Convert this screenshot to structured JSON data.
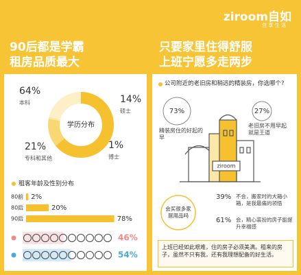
{
  "header": {
    "logo": "ziroom自如",
    "slogan": "住 享 生 活"
  },
  "left": {
    "title": [
      "90后都是学霸",
      "租房品质最大"
    ]
  },
  "right": {
    "title": [
      "只要家里住得舒服",
      "上班宁愿多走两步"
    ],
    "survey": [
      {
        "question": "公司附近的老旧房和稍远的精装房，你选哪个?",
        "options": [
          {
            "value": "73%",
            "text": "精装房住的好起的早"
          },
          {
            "value": "27%",
            "text": "老旧房不用早起就是王道"
          }
        ]
      },
      {
        "question": "会买很多家居用品吗",
        "options": [
          {
            "value": "39%",
            "text": "不会，搬家时的大箱小箱，是我最痛的领悟"
          },
          {
            "value": "61%",
            "text": "会，精心装扮的房子能提升幸福感"
          }
        ]
      }
    ],
    "sign": "ziroom",
    "conclusion": "上班已经如此艰难，住的房子必须美满。租来的房子，虽然不只有我，还有我理想配备的好生活。"
  },
  "chart_data": [
    {
      "type": "donut",
      "center_label": "学历分布",
      "categories": [
        "本科",
        "硕士",
        "博士",
        "专科和其他"
      ],
      "values": [
        64,
        14,
        1,
        21
      ],
      "value_labels": [
        "64%",
        "14%",
        "1%",
        "21%"
      ],
      "colors": [
        "#f6c12e",
        "#f9d873",
        "#fbe7a6",
        "#fdf0c6"
      ]
    },
    {
      "type": "bar",
      "title": "租客年龄及性别分布",
      "categories": [
        "80前",
        "80后",
        "90后"
      ],
      "values": [
        2,
        20,
        78
      ],
      "value_labels": [
        "2%",
        "20%",
        "78%"
      ],
      "color": "#f6c12e"
    },
    {
      "type": "pictogram",
      "series": [
        {
          "values": [
            46
          ],
          "value_labels": [
            "46%"
          ],
          "color": "#f08a8a"
        },
        {
          "values": [
            54
          ],
          "value_labels": [
            "54%"
          ],
          "color": "#4aa8e0"
        }
      ]
    }
  ]
}
